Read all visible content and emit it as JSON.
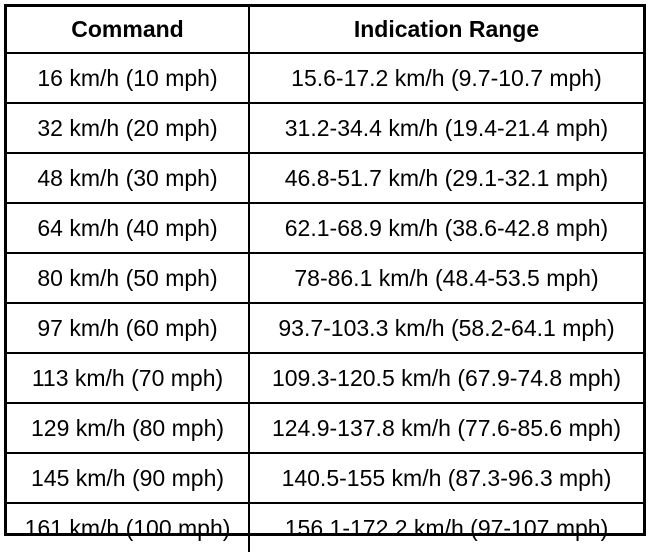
{
  "table": {
    "headers": [
      "Command",
      "Indication Range"
    ],
    "rows": [
      [
        "16 km/h (10 mph)",
        "15.6-17.2 km/h (9.7-10.7 mph)"
      ],
      [
        "32 km/h (20 mph)",
        "31.2-34.4 km/h (19.4-21.4 mph)"
      ],
      [
        "48 km/h (30 mph)",
        "46.8-51.7 km/h (29.1-32.1 mph)"
      ],
      [
        "64 km/h (40 mph)",
        "62.1-68.9 km/h (38.6-42.8 mph)"
      ],
      [
        "80 km/h (50 mph)",
        "78-86.1 km/h (48.4-53.5 mph)"
      ],
      [
        "97 km/h (60 mph)",
        "93.7-103.3 km/h (58.2-64.1 mph)"
      ],
      [
        "113 km/h (70 mph)",
        "109.3-120.5 km/h (67.9-74.8 mph)"
      ],
      [
        "129 km/h (80 mph)",
        "124.9-137.8 km/h (77.6-85.6 mph)"
      ],
      [
        "145 km/h (90 mph)",
        "140.5-155 km/h (87.3-96.3 mph)"
      ],
      [
        "161 km/h (100 mph)",
        "156.1-172.2 km/h (97-107 mph)"
      ]
    ]
  }
}
